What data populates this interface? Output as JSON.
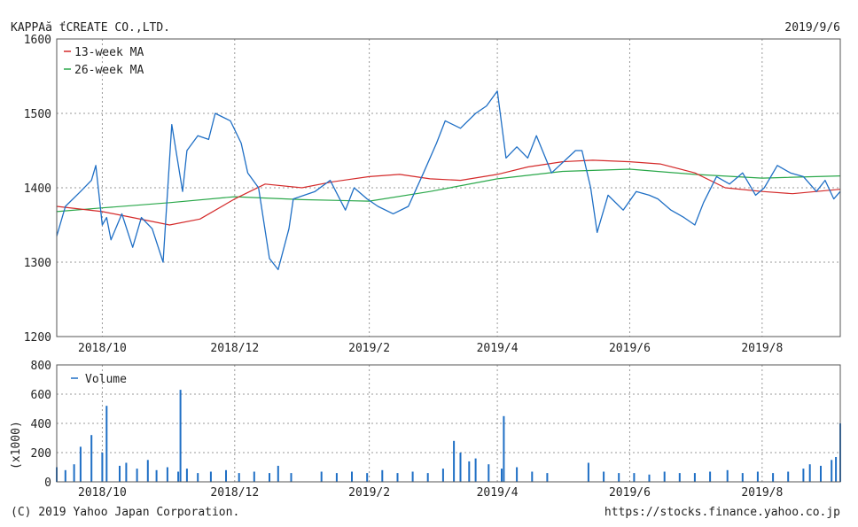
{
  "header": {
    "company": "KAPPAă ťCREATE CO.,LTD.",
    "date": "2019/9/6"
  },
  "footer": {
    "copyright": "(C) 2019 Yahoo Japan Corporation.",
    "url": "https://stocks.finance.yahoo.co.jp"
  },
  "colors": {
    "price": "#1f6fc5",
    "ma13": "#d42a2a",
    "ma26": "#2aa84a",
    "volume": "#1f6fc5",
    "grid": "#999999",
    "frame": "#555555"
  },
  "chart_data": [
    {
      "type": "line",
      "title": "",
      "ylim": [
        1200,
        1600
      ],
      "y_ticks": [
        1200,
        1300,
        1400,
        1500,
        1600
      ],
      "x_tick_labels": [
        "2018/10",
        "2018/12",
        "2019/2",
        "2019/4",
        "2019/6",
        "2019/8"
      ],
      "x_range": [
        "2018/9/10",
        "2019/9/6"
      ],
      "grid": true,
      "legend": {
        "position": "top-left",
        "entries": [
          "13-week MA",
          "26-week MA"
        ]
      },
      "series": [
        {
          "key": "price",
          "x": [
            "2018/9/10",
            "2018/9/14",
            "2018/9/21",
            "2018/9/26",
            "2018/9/28",
            "2018/10/1",
            "2018/10/3",
            "2018/10/5",
            "2018/10/10",
            "2018/10/15",
            "2018/10/19",
            "2018/10/24",
            "2018/10/29",
            "2018/11/2",
            "2018/11/7",
            "2018/11/9",
            "2018/11/14",
            "2018/11/19",
            "2018/11/22",
            "2018/11/29",
            "2018/12/4",
            "2018/12/7",
            "2018/12/12",
            "2018/12/17",
            "2018/12/21",
            "2018/12/26",
            "2018/12/28",
            "2019/1/7",
            "2019/1/14",
            "2019/1/21",
            "2019/1/25",
            "2019/1/31",
            "2019/2/5",
            "2019/2/12",
            "2019/2/19",
            "2019/2/26",
            "2019/3/4",
            "2019/3/8",
            "2019/3/15",
            "2019/3/22",
            "2019/3/27",
            "2019/4/1",
            "2019/4/5",
            "2019/4/10",
            "2019/4/15",
            "2019/4/19",
            "2019/4/26",
            "2019/5/7",
            "2019/5/10",
            "2019/5/14",
            "2019/5/17",
            "2019/5/22",
            "2019/5/29",
            "2019/6/4",
            "2019/6/10",
            "2019/6/14",
            "2019/6/20",
            "2019/6/26",
            "2019/7/1",
            "2019/7/5",
            "2019/7/11",
            "2019/7/17",
            "2019/7/23",
            "2019/7/29",
            "2019/8/2",
            "2019/8/8",
            "2019/8/14",
            "2019/8/20",
            "2019/8/26",
            "2019/8/30",
            "2019/9/3",
            "2019/9/6"
          ],
          "y": [
            1335,
            1375,
            1395,
            1410,
            1430,
            1350,
            1360,
            1330,
            1365,
            1320,
            1360,
            1345,
            1300,
            1485,
            1395,
            1450,
            1470,
            1465,
            1500,
            1490,
            1460,
            1420,
            1400,
            1305,
            1290,
            1345,
            1385,
            1395,
            1410,
            1370,
            1400,
            1385,
            1375,
            1365,
            1375,
            1420,
            1460,
            1490,
            1480,
            1500,
            1510,
            1530,
            1440,
            1455,
            1440,
            1470,
            1420,
            1450,
            1450,
            1400,
            1340,
            1390,
            1370,
            1395,
            1390,
            1385,
            1370,
            1360,
            1350,
            1380,
            1415,
            1405,
            1420,
            1390,
            1400,
            1430,
            1420,
            1415,
            1395,
            1410,
            1385,
            1395
          ]
        },
        {
          "key": "ma13",
          "name": "13-week MA",
          "x": [
            "2018/9/10",
            "2018/10/1",
            "2018/10/15",
            "2018/11/1",
            "2018/11/15",
            "2018/12/1",
            "2018/12/15",
            "2019/1/1",
            "2019/1/15",
            "2019/2/1",
            "2019/2/15",
            "2019/3/1",
            "2019/3/15",
            "2019/4/1",
            "2019/4/15",
            "2019/5/1",
            "2019/5/15",
            "2019/6/1",
            "2019/6/15",
            "2019/7/1",
            "2019/7/15",
            "2019/8/1",
            "2019/8/15",
            "2019/9/6"
          ],
          "y": [
            1375,
            1368,
            1360,
            1350,
            1358,
            1385,
            1405,
            1400,
            1408,
            1415,
            1418,
            1412,
            1410,
            1418,
            1428,
            1435,
            1437,
            1435,
            1432,
            1420,
            1400,
            1395,
            1392,
            1398
          ]
        },
        {
          "key": "ma26",
          "name": "26-week MA",
          "x": [
            "2018/9/10",
            "2018/10/1",
            "2018/11/1",
            "2018/12/1",
            "2019/1/1",
            "2019/2/1",
            "2019/3/1",
            "2019/4/1",
            "2019/5/1",
            "2019/6/1",
            "2019/7/1",
            "2019/8/1",
            "2019/9/6"
          ],
          "y": [
            1368,
            1373,
            1380,
            1388,
            1384,
            1382,
            1395,
            1412,
            1422,
            1425,
            1418,
            1413,
            1416
          ]
        }
      ]
    },
    {
      "type": "bar",
      "ylabel": "(x1000)",
      "ylim": [
        0,
        800
      ],
      "y_ticks": [
        0,
        200,
        400,
        600,
        800
      ],
      "x_tick_labels": [
        "2018/10",
        "2018/12",
        "2019/2",
        "2019/4",
        "2019/6",
        "2019/8"
      ],
      "grid": true,
      "legend": {
        "position": "top-left",
        "entries": [
          "Volume"
        ]
      },
      "series": [
        {
          "key": "volume",
          "name": "Volume",
          "x": [
            "2018/9/10",
            "2018/9/14",
            "2018/9/18",
            "2018/9/21",
            "2018/9/26",
            "2018/10/1",
            "2018/10/3",
            "2018/10/9",
            "2018/10/12",
            "2018/10/17",
            "2018/10/22",
            "2018/10/26",
            "2018/10/31",
            "2018/11/5",
            "2018/11/6",
            "2018/11/9",
            "2018/11/14",
            "2018/11/20",
            "2018/11/27",
            "2018/12/3",
            "2018/12/10",
            "2018/12/17",
            "2018/12/21",
            "2018/12/27",
            "2019/1/10",
            "2019/1/17",
            "2019/1/24",
            "2019/1/31",
            "2019/2/7",
            "2019/2/14",
            "2019/2/21",
            "2019/2/28",
            "2019/3/7",
            "2019/3/12",
            "2019/3/15",
            "2019/3/19",
            "2019/3/22",
            "2019/3/28",
            "2019/4/3",
            "2019/4/4",
            "2019/4/10",
            "2019/4/17",
            "2019/4/24",
            "2019/5/13",
            "2019/5/20",
            "2019/5/27",
            "2019/6/3",
            "2019/6/10",
            "2019/6/17",
            "2019/6/24",
            "2019/7/1",
            "2019/7/8",
            "2019/7/16",
            "2019/7/23",
            "2019/7/30",
            "2019/8/6",
            "2019/8/13",
            "2019/8/20",
            "2019/8/23",
            "2019/8/28",
            "2019/9/2",
            "2019/9/4",
            "2019/9/6"
          ],
          "y": [
            100,
            80,
            120,
            240,
            320,
            200,
            520,
            110,
            130,
            90,
            150,
            80,
            100,
            70,
            630,
            90,
            60,
            70,
            80,
            60,
            70,
            60,
            110,
            60,
            70,
            60,
            70,
            60,
            80,
            60,
            70,
            60,
            90,
            280,
            200,
            140,
            160,
            120,
            90,
            450,
            100,
            70,
            60,
            130,
            70,
            60,
            60,
            50,
            70,
            60,
            60,
            70,
            80,
            60,
            70,
            60,
            70,
            90,
            120,
            110,
            150,
            170,
            400
          ]
        }
      ]
    }
  ]
}
